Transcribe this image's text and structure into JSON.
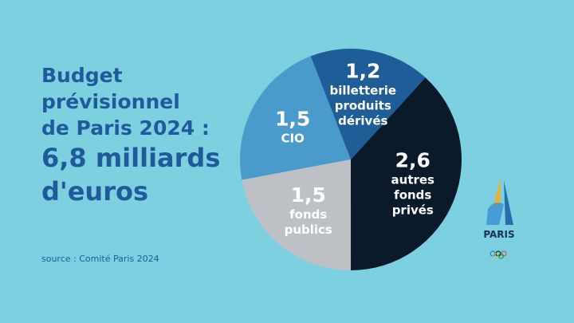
{
  "chart_data": {
    "type": "pie",
    "title": [
      "Budget",
      "prévisionnel",
      "de Paris 2024 :"
    ],
    "subtitle": [
      "6,8 milliards",
      "d'euros"
    ],
    "categories": [
      "billetterie produits dérivés",
      "autres fonds privés",
      "fonds publics",
      "CIO"
    ],
    "values": [
      1.2,
      2.6,
      1.5,
      1.5
    ],
    "value_labels": [
      "1,2",
      "2,6",
      "1,5",
      "1,5"
    ],
    "colors": [
      "#1f5d99",
      "#0b1a2b",
      "#bdc1c5",
      "#4a9bcb"
    ],
    "source": "source : Comité Paris 2024"
  },
  "logo_text": "PARIS"
}
